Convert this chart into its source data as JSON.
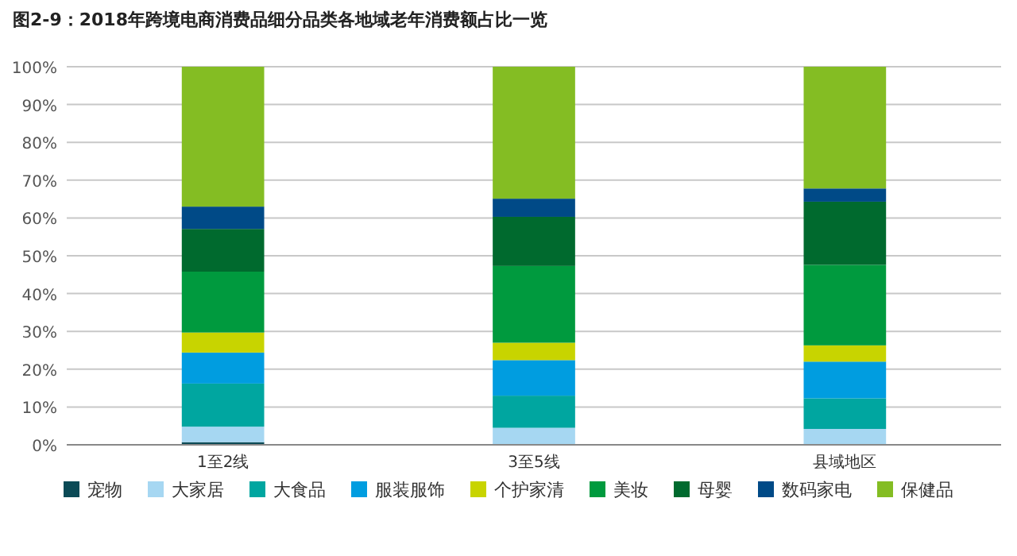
{
  "chart_data": {
    "type": "bar",
    "title": "图2-9：2018年跨境电商消费品细分品类各地域老年消费额占比一览",
    "categories": [
      "1至2线",
      "3至5线",
      "县域地区"
    ],
    "stacked": true,
    "ylim": [
      0,
      100
    ],
    "yticks": [
      {
        "value": 0,
        "label": "0%"
      },
      {
        "value": 10,
        "label": "10%"
      },
      {
        "value": 20,
        "label": "20%"
      },
      {
        "value": 30,
        "label": "30%"
      },
      {
        "value": 40,
        "label": "40%"
      },
      {
        "value": 50,
        "label": "50%"
      },
      {
        "value": 60,
        "label": "60%"
      },
      {
        "value": 70,
        "label": "70%"
      },
      {
        "value": 80,
        "label": "80%"
      },
      {
        "value": 90,
        "label": "90%"
      },
      {
        "value": 100,
        "label": "100%"
      }
    ],
    "grid": "y",
    "legend": "bottom",
    "series": [
      {
        "name": "宠物",
        "color": "#0b4a56",
        "values": [
          0.7,
          null,
          null
        ]
      },
      {
        "name": "大家居",
        "color": "#a6d7f2",
        "values": [
          4.1,
          4.5,
          4.2
        ]
      },
      {
        "name": "大食品",
        "color": "#00a6a0",
        "values": [
          11.4,
          8.5,
          8.1
        ]
      },
      {
        "name": "服装服饰",
        "color": "#009de0",
        "values": [
          8.2,
          9.4,
          9.7
        ]
      },
      {
        "name": "个护家清",
        "color": "#c8d400",
        "values": [
          5.3,
          4.6,
          4.3
        ]
      },
      {
        "name": "美妆",
        "color": "#009a3e",
        "values": [
          16.1,
          20.3,
          21.3
        ]
      },
      {
        "name": "母婴",
        "color": "#006a2e",
        "values": [
          11.3,
          13.0,
          16.7
        ]
      },
      {
        "name": "数码家电",
        "color": "#004a87",
        "values": [
          5.9,
          4.8,
          3.5
        ]
      },
      {
        "name": "保健品",
        "color": "#84bd23",
        "values": [
          37.0,
          34.9,
          32.2
        ]
      }
    ]
  }
}
